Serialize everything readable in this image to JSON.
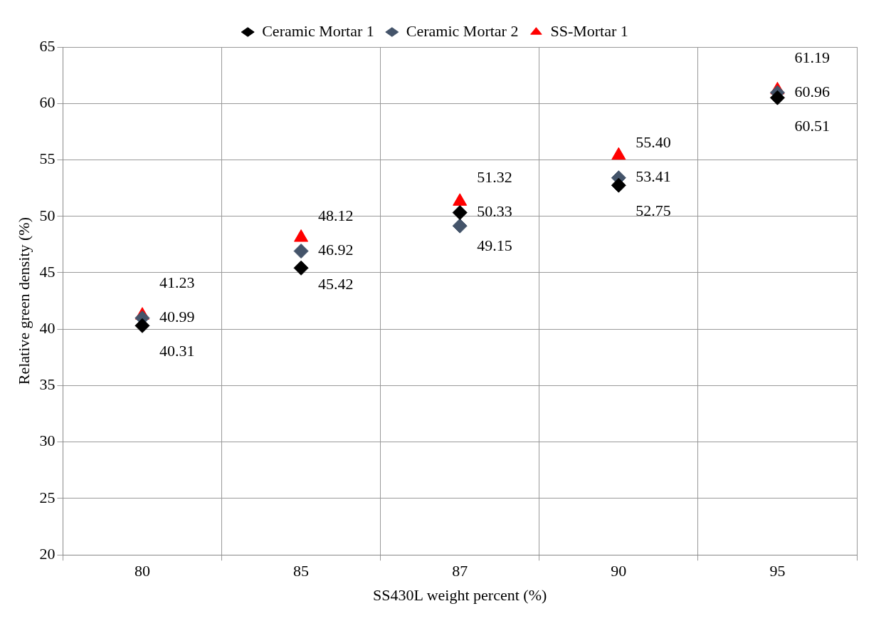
{
  "chart_data": {
    "type": "scatter",
    "xlabel": "SS430L weight percent (%)",
    "ylabel": "Relative green density (%)",
    "categories": [
      "80",
      "85",
      "87",
      "90",
      "95"
    ],
    "series": [
      {
        "name": "Ceramic Mortar 1",
        "color": "#000000",
        "marker": "diamond",
        "values": [
          40.31,
          45.42,
          50.33,
          52.75,
          60.51
        ],
        "value_labels": [
          "40.31",
          "45.42",
          "50.33",
          "52.75",
          "60.51"
        ]
      },
      {
        "name": "Ceramic Mortar 2",
        "color": "#44546a",
        "marker": "diamond",
        "values": [
          40.99,
          46.92,
          49.15,
          53.41,
          60.96
        ],
        "value_labels": [
          "40.99",
          "46.92",
          "49.15",
          "53.41",
          "60.96"
        ]
      },
      {
        "name": "SS-Mortar 1",
        "color": "#ff0000",
        "marker": "triangle",
        "values": [
          41.23,
          48.12,
          51.32,
          55.4,
          61.19
        ],
        "value_labels": [
          "41.23",
          "48.12",
          "51.32",
          "55.40",
          "61.19"
        ]
      }
    ],
    "ylim": [
      20,
      65
    ],
    "yticks": [
      20,
      25,
      30,
      35,
      40,
      45,
      50,
      55,
      60,
      65
    ],
    "grid": true,
    "legend": "top"
  }
}
